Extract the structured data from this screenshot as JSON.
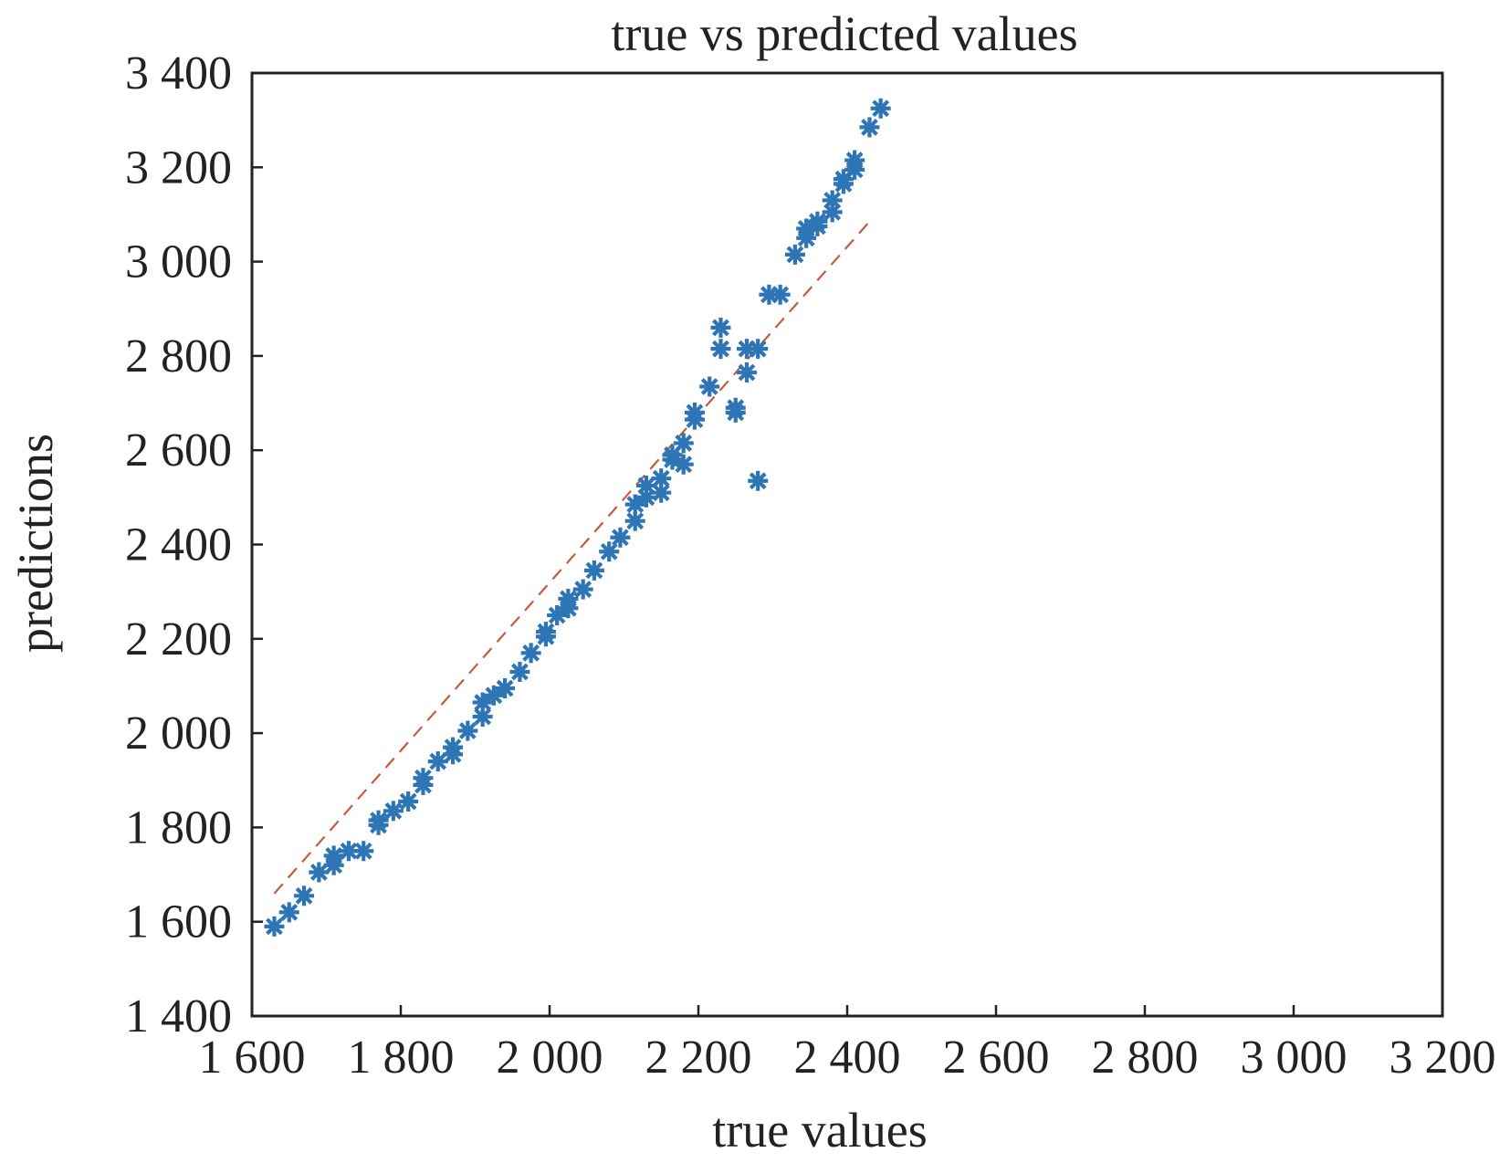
{
  "chart_data": {
    "type": "scatter",
    "title": "true vs predicted values",
    "xlabel": "true values",
    "ylabel": "predictions",
    "xlim": [
      1600,
      3200
    ],
    "ylim": [
      1400,
      3400
    ],
    "x_ticks": [
      1600,
      1800,
      2000,
      2200,
      2400,
      2600,
      2800,
      3000,
      3200
    ],
    "y_ticks": [
      1400,
      1600,
      1800,
      2000,
      2200,
      2400,
      2600,
      2800,
      3000,
      3200,
      3400
    ],
    "x_tick_labels": [
      "1 600",
      "1 800",
      "2 000",
      "2 200",
      "2 400",
      "2 600",
      "2 800",
      "3 000",
      "3 200"
    ],
    "y_tick_labels": [
      "1 400",
      "1 600",
      "1 800",
      "2 000",
      "2 200",
      "2 400",
      "2 600",
      "2 800",
      "3 000",
      "3 200",
      "3 400"
    ],
    "grid": false,
    "series": [
      {
        "name": "predictions",
        "marker": "asterisk",
        "color": "#2E75B6",
        "points": [
          [
            1630,
            1590
          ],
          [
            1650,
            1620
          ],
          [
            1670,
            1655
          ],
          [
            1690,
            1705
          ],
          [
            1710,
            1720
          ],
          [
            1710,
            1740
          ],
          [
            1730,
            1750
          ],
          [
            1750,
            1750
          ],
          [
            1770,
            1805
          ],
          [
            1770,
            1815
          ],
          [
            1790,
            1835
          ],
          [
            1810,
            1855
          ],
          [
            1830,
            1890
          ],
          [
            1830,
            1905
          ],
          [
            1850,
            1940
          ],
          [
            1870,
            1955
          ],
          [
            1870,
            1970
          ],
          [
            1890,
            2005
          ],
          [
            1910,
            2035
          ],
          [
            1910,
            2065
          ],
          [
            1925,
            2080
          ],
          [
            1940,
            2095
          ],
          [
            1960,
            2130
          ],
          [
            1975,
            2170
          ],
          [
            1995,
            2205
          ],
          [
            1995,
            2215
          ],
          [
            2010,
            2250
          ],
          [
            2025,
            2265
          ],
          [
            2025,
            2285
          ],
          [
            2045,
            2305
          ],
          [
            2060,
            2345
          ],
          [
            2080,
            2385
          ],
          [
            2095,
            2415
          ],
          [
            2115,
            2450
          ],
          [
            2115,
            2485
          ],
          [
            2130,
            2500
          ],
          [
            2130,
            2525
          ],
          [
            2150,
            2510
          ],
          [
            2150,
            2540
          ],
          [
            2165,
            2580
          ],
          [
            2165,
            2590
          ],
          [
            2180,
            2570
          ],
          [
            2180,
            2615
          ],
          [
            2195,
            2665
          ],
          [
            2195,
            2680
          ],
          [
            2215,
            2735
          ],
          [
            2230,
            2815
          ],
          [
            2230,
            2860
          ],
          [
            2250,
            2680
          ],
          [
            2250,
            2690
          ],
          [
            2265,
            2765
          ],
          [
            2265,
            2815
          ],
          [
            2280,
            2815
          ],
          [
            2280,
            2535
          ],
          [
            2295,
            2930
          ],
          [
            2310,
            2930
          ],
          [
            2330,
            3015
          ],
          [
            2345,
            3050
          ],
          [
            2345,
            3070
          ],
          [
            2360,
            3075
          ],
          [
            2360,
            3085
          ],
          [
            2380,
            3105
          ],
          [
            2380,
            3130
          ],
          [
            2395,
            3165
          ],
          [
            2395,
            3175
          ],
          [
            2410,
            3195
          ],
          [
            2410,
            3215
          ],
          [
            2430,
            3285
          ],
          [
            2445,
            3325
          ]
        ]
      },
      {
        "name": "ideal line",
        "style": "dashed",
        "color": "#C85A3C",
        "points": [
          [
            1630,
            1660
          ],
          [
            2430,
            3085
          ]
        ]
      }
    ]
  }
}
